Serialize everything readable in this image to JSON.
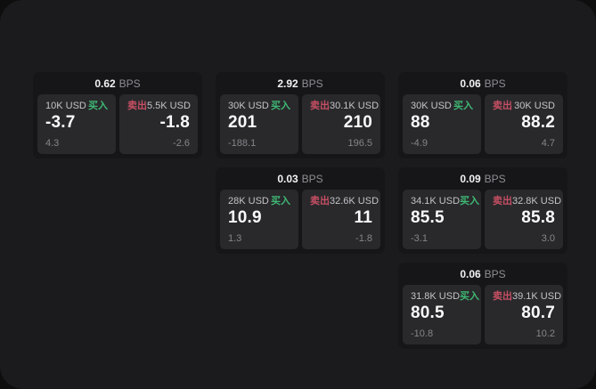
{
  "labels": {
    "bps": "BPS",
    "buy": "买入",
    "sell": "卖出"
  },
  "colors": {
    "outer_bg": "#0e0e0f",
    "panel_bg": "#1b1b1d",
    "card_bg": "#161619",
    "tile_bg": "#29292c",
    "buy_green": "#3fb873",
    "sell_red": "#c64f63",
    "value_white": "#fafafa",
    "muted_gray": "#85858a"
  },
  "cards": [
    {
      "bps": "0.62",
      "buy": {
        "amount": "10K USD",
        "value": "-3.7",
        "delta": "4.3"
      },
      "sell": {
        "amount": "5.5K USD",
        "value": "-1.8",
        "delta": "-2.6"
      }
    },
    {
      "bps": "2.92",
      "buy": {
        "amount": "30K USD",
        "value": "201",
        "delta": "-188.1"
      },
      "sell": {
        "amount": "30.1K USD",
        "value": "210",
        "delta": "196.5"
      }
    },
    {
      "bps": "0.06",
      "buy": {
        "amount": "30K USD",
        "value": "88",
        "delta": "-4.9"
      },
      "sell": {
        "amount": "30K USD",
        "value": "88.2",
        "delta": "4.7"
      }
    },
    {
      "bps": "0.03",
      "buy": {
        "amount": "28K USD",
        "value": "10.9",
        "delta": "1.3"
      },
      "sell": {
        "amount": "32.6K USD",
        "value": "11",
        "delta": "-1.8"
      }
    },
    {
      "bps": "0.09",
      "buy": {
        "amount": "34.1K USD",
        "value": "85.5",
        "delta": "-3.1"
      },
      "sell": {
        "amount": "32.8K USD",
        "value": "85.8",
        "delta": "3.0"
      }
    },
    {
      "bps": "0.06",
      "buy": {
        "amount": "31.8K USD",
        "value": "80.5",
        "delta": "-10.8"
      },
      "sell": {
        "amount": "39.1K USD",
        "value": "80.7",
        "delta": "10.2"
      }
    }
  ]
}
